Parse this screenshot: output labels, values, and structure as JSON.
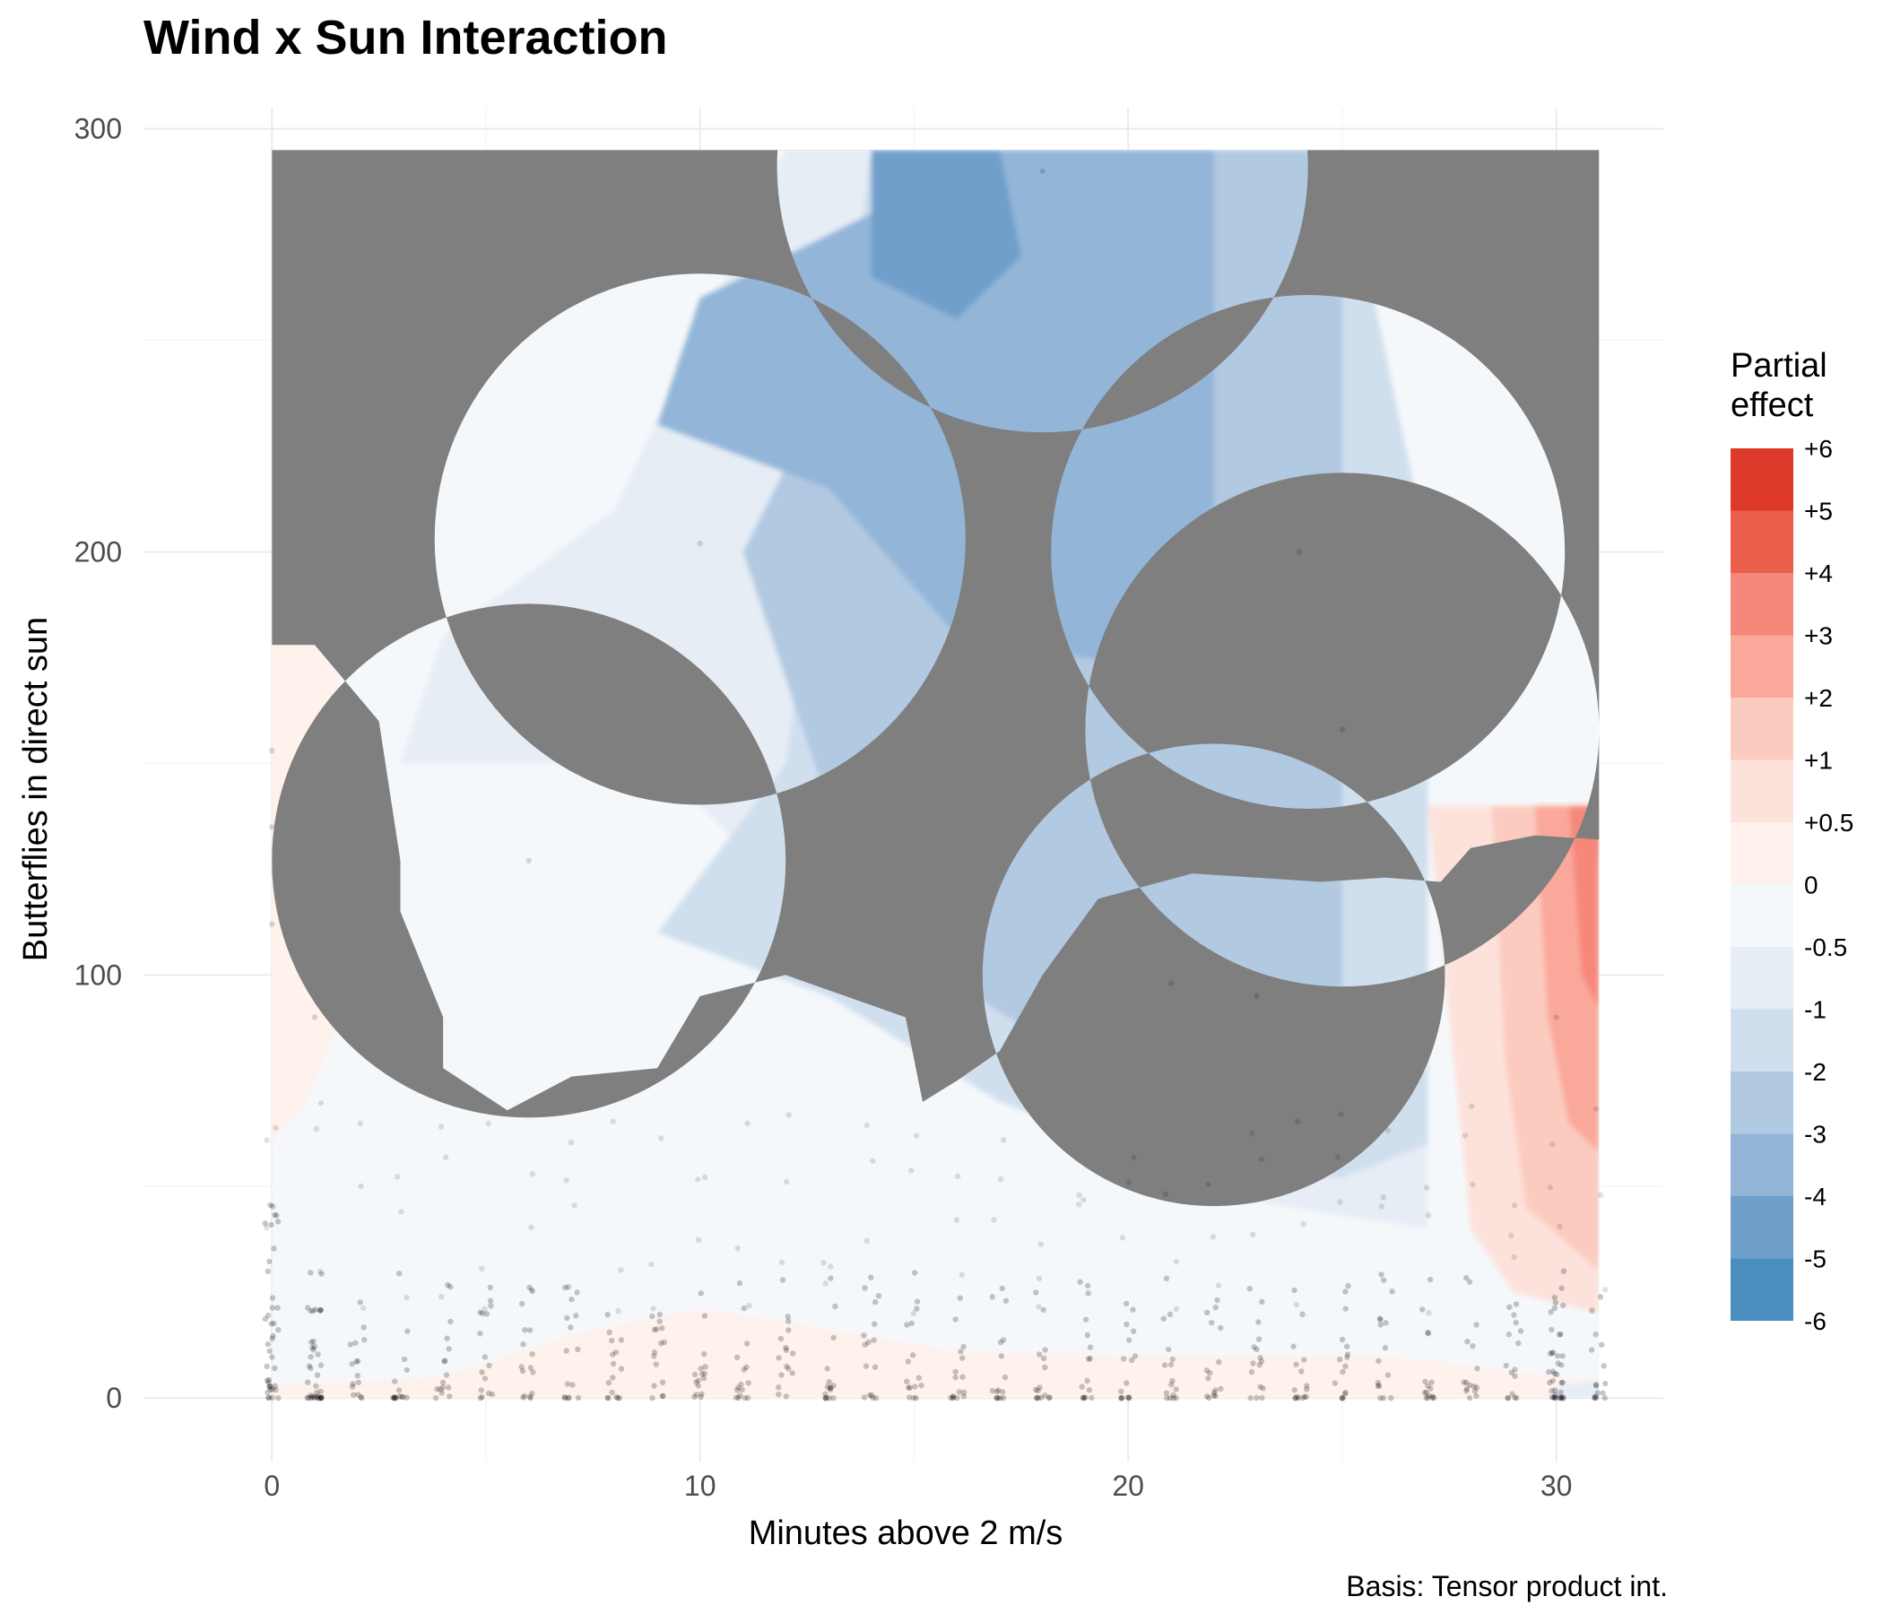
{
  "chart_data": {
    "type": "heatmap",
    "title": "Wind x Sun Interaction",
    "xlabel": "Minutes above 2 m/s",
    "ylabel": "Butterflies in direct sun",
    "caption": "Basis: Tensor product int.",
    "xlim": [
      -3,
      32.5
    ],
    "ylim": [
      -15,
      305
    ],
    "x_ticks": [
      0,
      10,
      20,
      30
    ],
    "y_ticks": [
      0,
      100,
      200,
      300
    ],
    "grid": true,
    "legend": {
      "title_lines": [
        "Partial",
        "effect"
      ],
      "position": "right",
      "labels": [
        "+6",
        "+5",
        "+4",
        "+3",
        "+2",
        "+1",
        "+0.5",
        "0",
        "-0.5",
        "-1",
        "-2",
        "-3",
        "-4",
        "-5",
        "-6"
      ],
      "colors": [
        "#de3a2c",
        "#ea5e4c",
        "#f5887a",
        "#faa89a",
        "#fccbbf",
        "#fde2db",
        "#fff1ec",
        "#f5f8fb",
        "#e6edf5",
        "#d0dfed",
        "#b2c9e2",
        "#93b6d8",
        "#6f9fcb",
        "#4a8dbf"
      ]
    },
    "missing_color": "#7f7f7f",
    "surface": {
      "x_range": [
        0,
        31
      ],
      "y_range": [
        0,
        295
      ],
      "masked_gray": true
    },
    "observations": {
      "x_values": [
        0,
        1,
        2,
        3,
        4,
        5,
        6,
        7,
        8,
        9,
        10,
        11,
        12,
        13,
        14,
        15,
        16,
        17,
        18,
        19,
        20,
        21,
        22,
        23,
        24,
        25,
        26,
        27,
        28,
        29,
        30,
        31
      ],
      "highlighted_points": [
        {
          "x": 10,
          "y": 202
        },
        {
          "x": 18,
          "y": 290
        },
        {
          "x": 6,
          "y": 127
        },
        {
          "x": 24,
          "y": 200
        },
        {
          "x": 25,
          "y": 158
        },
        {
          "x": 21,
          "y": 98
        },
        {
          "x": 23,
          "y": 95
        },
        {
          "x": 30,
          "y": 90
        },
        {
          "x": 0,
          "y": 153
        },
        {
          "x": 0,
          "y": 135
        },
        {
          "x": 0,
          "y": 112
        },
        {
          "x": 1,
          "y": 90
        }
      ]
    }
  }
}
